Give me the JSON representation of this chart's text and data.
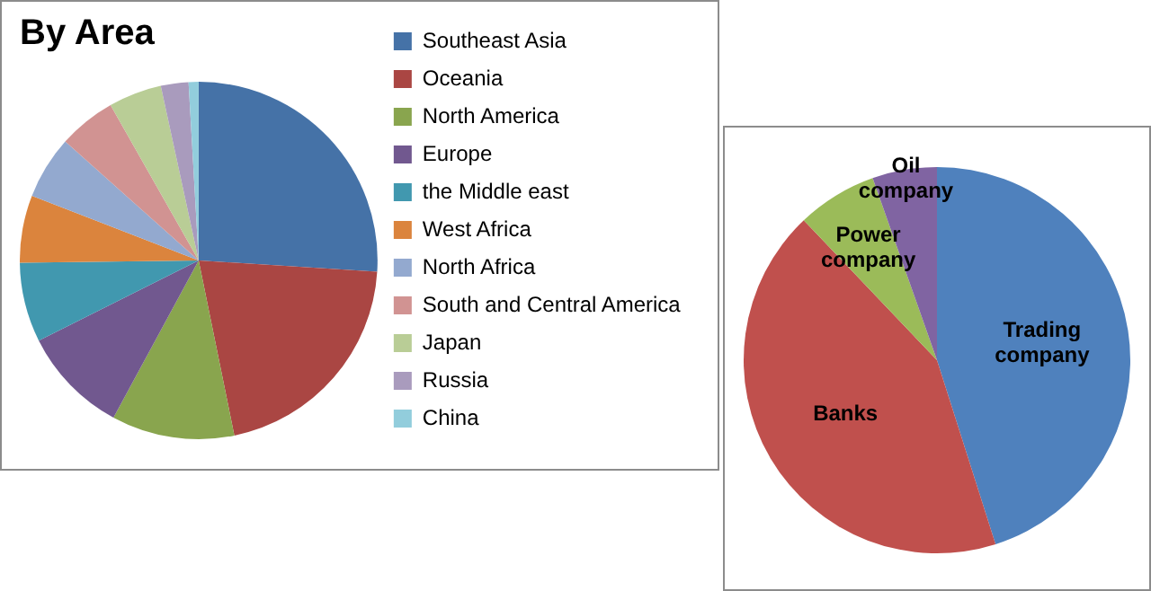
{
  "chart_data": [
    {
      "type": "pie",
      "title": "By Area",
      "categories": [
        "Southeast Asia",
        "Oceania",
        "North America",
        "Europe",
        "the Middle east",
        "West Africa",
        "North Africa",
        "South and Central America",
        "Japan",
        "Russia",
        "China"
      ],
      "values": [
        26.0,
        20.8,
        11.1,
        9.7,
        7.2,
        6.1,
        5.7,
        5.2,
        4.8,
        2.5,
        0.9
      ],
      "colors": [
        "#4572a7",
        "#aa4643",
        "#89a54e",
        "#71588f",
        "#4198af",
        "#db843d",
        "#93a9cf",
        "#d19392",
        "#b9cd96",
        "#a99bbd",
        "#92cddc"
      ],
      "legend": "right"
    },
    {
      "type": "pie",
      "categories": [
        "Trading company",
        "Banks",
        "Power company",
        "Oil company"
      ],
      "values": [
        45.1,
        42.8,
        6.7,
        5.4
      ],
      "colors": [
        "#4f81bd",
        "#c0504d",
        "#9bbb59",
        "#8064a2"
      ],
      "legend": false
    }
  ]
}
